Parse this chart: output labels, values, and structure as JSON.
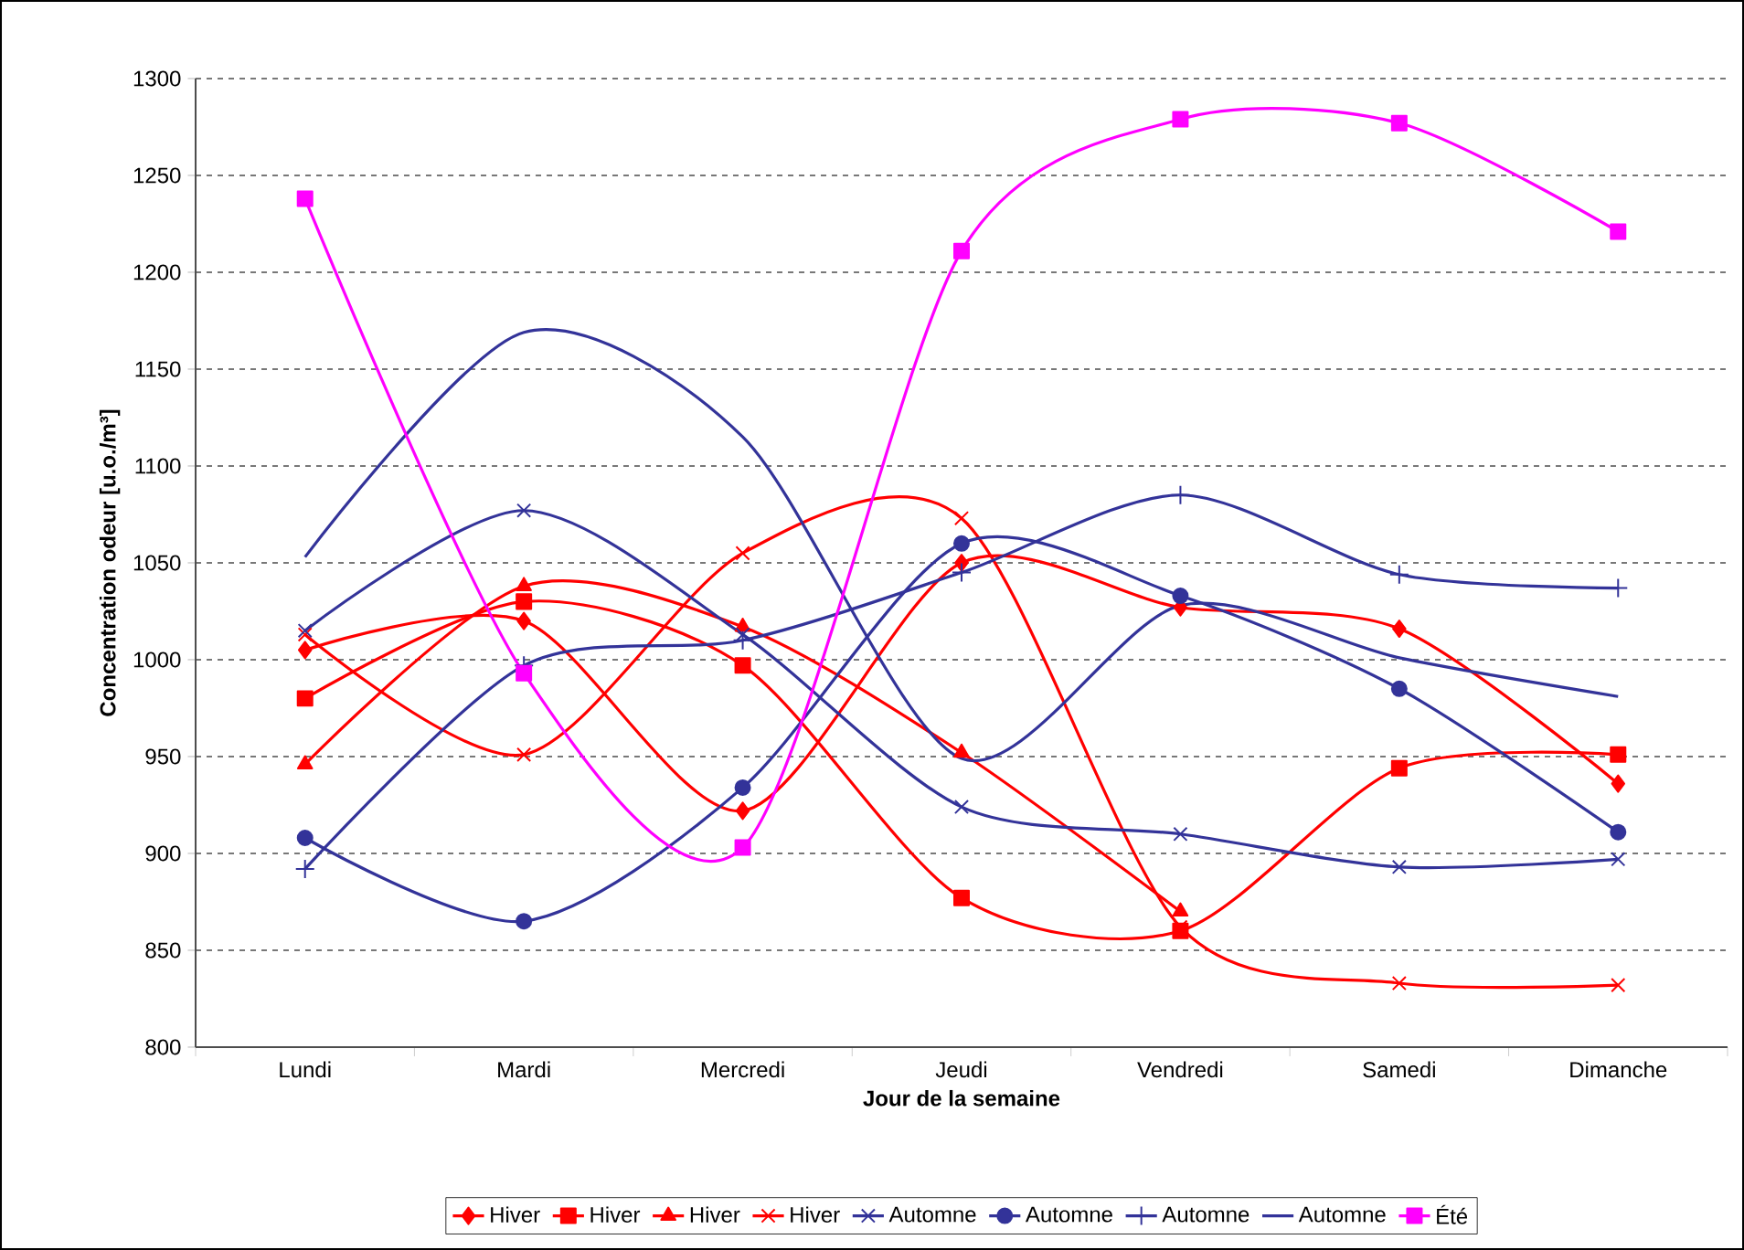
{
  "chart_data": {
    "type": "line",
    "xlabel": "Jour de la semaine",
    "ylabel": "Concentration odeur [u.o./m³]",
    "categories": [
      "Lundi",
      "Mardi",
      "Mercredi",
      "Jeudi",
      "Vendredi",
      "Samedi",
      "Dimanche"
    ],
    "ylim": [
      800,
      1300
    ],
    "yticks": [
      800,
      850,
      900,
      950,
      1000,
      1050,
      1100,
      1150,
      1200,
      1250,
      1300
    ],
    "grid": "y",
    "legend": "bottom",
    "series": [
      {
        "name": "Hiver",
        "color": "#ff0000",
        "marker": "diamond",
        "values": [
          1005,
          1020,
          922,
          1050,
          1027,
          1016,
          936
        ]
      },
      {
        "name": "Hiver",
        "color": "#ff0000",
        "marker": "square",
        "values": [
          980,
          1030,
          997,
          877,
          860,
          944,
          951
        ]
      },
      {
        "name": "Hiver",
        "color": "#ff0000",
        "marker": "triangle",
        "values": [
          946,
          1038,
          1017,
          952,
          870,
          null,
          null
        ]
      },
      {
        "name": "Hiver",
        "color": "#ff0000",
        "marker": "cross",
        "values": [
          1013,
          951,
          1055,
          1073,
          862,
          833,
          832
        ]
      },
      {
        "name": "Automne",
        "color": "#333399",
        "marker": "cross",
        "values": [
          1015,
          1077,
          1013,
          924,
          910,
          893,
          897
        ]
      },
      {
        "name": "Automne",
        "color": "#333399",
        "marker": "circle",
        "values": [
          908,
          865,
          934,
          1060,
          1033,
          985,
          911
        ]
      },
      {
        "name": "Automne",
        "color": "#333399",
        "marker": "plus",
        "values": [
          892,
          997,
          1010,
          1045,
          1085,
          1044,
          1037
        ]
      },
      {
        "name": "Automne",
        "color": "#333399",
        "marker": "none",
        "values": [
          1053,
          1169,
          1115,
          949,
          1028,
          1001,
          981
        ]
      },
      {
        "name": "Été",
        "color": "#ff00ff",
        "marker": "square",
        "values": [
          1238,
          993,
          903,
          1211,
          1279,
          1277,
          1221
        ]
      }
    ]
  }
}
